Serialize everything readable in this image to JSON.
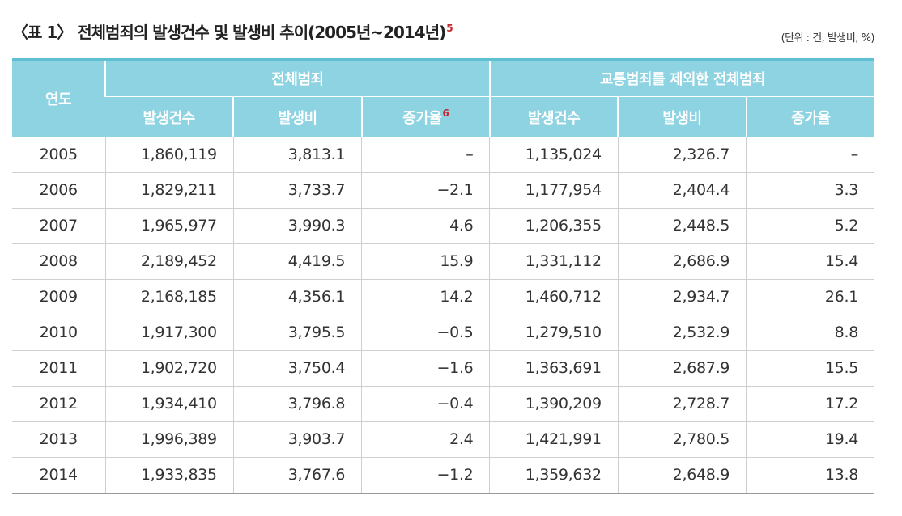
{
  "title": {
    "text": "〈표 1〉 전체범죄의 발생건수 및 발생비 추이(2005년~2014년)",
    "note": "5"
  },
  "unit": "(단위 : 건, 발생비, %)",
  "table": {
    "header": {
      "year": "연도",
      "groups": [
        "전체범죄",
        "교통범죄를 제외한 전체범죄"
      ],
      "columns": [
        "발생건수",
        "발생비",
        "증가율",
        "발생건수",
        "발생비",
        "증가율"
      ],
      "note": "6"
    },
    "rows": [
      [
        "2005",
        "1,860,119",
        "3,813.1",
        "–",
        "1,135,024",
        "2,326.7",
        "–"
      ],
      [
        "2006",
        "1,829,211",
        "3,733.7",
        "−2.1",
        "1,177,954",
        "2,404.4",
        "3.3"
      ],
      [
        "2007",
        "1,965,977",
        "3,990.3",
        "4.6",
        "1,206,355",
        "2,448.5",
        "5.2"
      ],
      [
        "2008",
        "2,189,452",
        "4,419.5",
        "15.9",
        "1,331,112",
        "2,686.9",
        "15.4"
      ],
      [
        "2009",
        "2,168,185",
        "4,356.1",
        "14.2",
        "1,460,712",
        "2,934.7",
        "26.1"
      ],
      [
        "2010",
        "1,917,300",
        "3,795.5",
        "−0.5",
        "1,279,510",
        "2,532.9",
        "8.8"
      ],
      [
        "2011",
        "1,902,720",
        "3,750.4",
        "−1.6",
        "1,363,691",
        "2,687.9",
        "15.5"
      ],
      [
        "2012",
        "1,934,410",
        "3,796.8",
        "−0.4",
        "1,390,209",
        "2,728.7",
        "17.2"
      ],
      [
        "2013",
        "1,996,389",
        "3,903.7",
        "2.4",
        "1,421,991",
        "2,780.5",
        "19.4"
      ],
      [
        "2014",
        "1,933,835",
        "3,767.6",
        "−1.2",
        "1,359,632",
        "2,648.9",
        "13.8"
      ]
    ]
  }
}
